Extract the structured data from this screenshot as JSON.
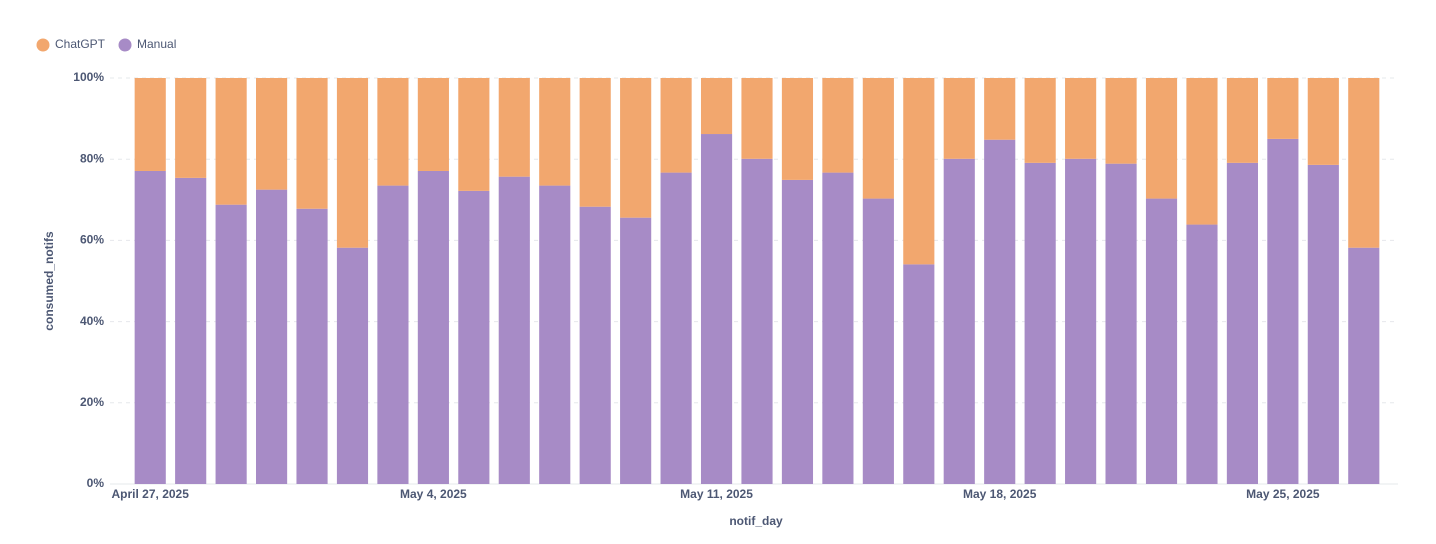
{
  "chart_data": {
    "type": "stacked_bar",
    "legend": "top-left",
    "xlabel": "notif_day",
    "ylabel": "consumed_notifs",
    "categories": [
      "April 27, 2025",
      null,
      null,
      null,
      null,
      null,
      null,
      "May 4, 2025",
      null,
      null,
      null,
      null,
      null,
      null,
      "May 11, 2025",
      null,
      null,
      null,
      null,
      null,
      null,
      "May 18, 2025",
      null,
      null,
      null,
      null,
      null,
      null,
      "May 25, 2025",
      null,
      null
    ],
    "series": [
      {
        "name": "ChatGPT",
        "color": "#f2a76e",
        "values": [
          22.9,
          24.6,
          31.2,
          27.5,
          32.2,
          41.8,
          26.5,
          22.9,
          27.8,
          24.3,
          26.5,
          31.7,
          34.4,
          23.3,
          13.8,
          19.9,
          25.1,
          23.3,
          29.7,
          45.9,
          19.9,
          15.2,
          20.9,
          19.9,
          21.1,
          29.7,
          36.1,
          20.9,
          15.0,
          21.4,
          41.8
        ]
      },
      {
        "name": "Manual",
        "color": "#a78bc6",
        "values": [
          77.1,
          75.4,
          68.8,
          72.5,
          67.8,
          58.2,
          73.5,
          77.1,
          72.2,
          75.7,
          73.5,
          68.3,
          65.6,
          76.7,
          86.2,
          80.1,
          74.9,
          76.7,
          70.3,
          54.1,
          80.1,
          84.8,
          79.1,
          80.1,
          78.9,
          70.3,
          63.9,
          79.1,
          85.0,
          78.6,
          58.2
        ]
      }
    ],
    "ylim": [
      0,
      100
    ],
    "yticks": [
      {
        "value": 0,
        "label": "0%"
      },
      {
        "value": 20,
        "label": "20%"
      },
      {
        "value": 40,
        "label": "40%"
      },
      {
        "value": 60,
        "label": "60%"
      },
      {
        "value": 80,
        "label": "80%"
      },
      {
        "value": 100,
        "label": "100%"
      }
    ],
    "grid": true
  }
}
